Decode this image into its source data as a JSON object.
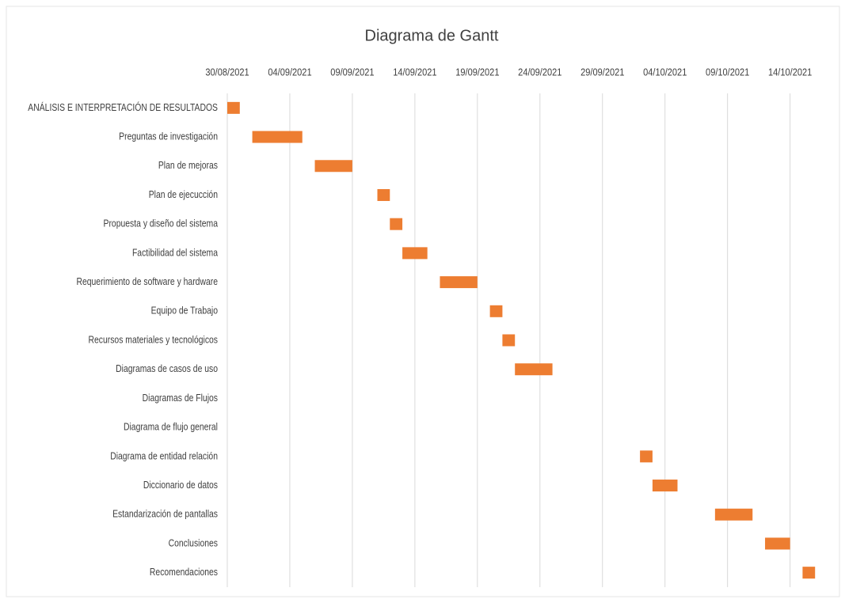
{
  "chart_data": {
    "type": "gantt",
    "title": "Diagrama de Gantt",
    "categories": [
      "ANÁLISIS E INTERPRETACIÓN DE RESULTADOS",
      "Preguntas de investigación",
      "Plan de mejoras",
      "Plan de ejecucción",
      "Propuesta y diseño del sistema",
      "Factibilidad del sistema",
      "Requerimiento de software y hardware",
      "Equipo de Trabajo",
      "Recursos materiales y tecnológicos",
      "Diagramas de casos de uso",
      "Diagramas de Flujos",
      "Diagrama de flujo general",
      "Diagrama de entidad relación",
      "Diccionario de datos",
      "Estandarización de pantallas",
      "Conclusiones",
      "Recomendaciones"
    ],
    "starts": [
      "30/08/2021",
      "01/09/2021",
      "06/09/2021",
      "11/09/2021",
      "12/09/2021",
      "13/09/2021",
      "16/09/2021",
      "20/09/2021",
      "21/09/2021",
      "22/09/2021",
      null,
      null,
      "02/10/2021",
      "03/10/2021",
      "08/10/2021",
      "12/10/2021",
      "15/10/2021"
    ],
    "values": [
      1,
      4,
      3,
      1,
      1,
      2,
      3,
      1,
      1,
      3,
      null,
      null,
      1,
      2,
      3,
      2,
      1
    ],
    "color": "#ed7d31",
    "xlim": [
      "30/08/2021",
      "17/10/2021"
    ],
    "xticks": [
      "30/08/2021",
      "04/09/2021",
      "09/09/2021",
      "14/09/2021",
      "19/09/2021",
      "24/09/2021",
      "29/09/2021",
      "04/10/2021",
      "09/10/2021",
      "14/10/2021"
    ],
    "grid": true
  }
}
